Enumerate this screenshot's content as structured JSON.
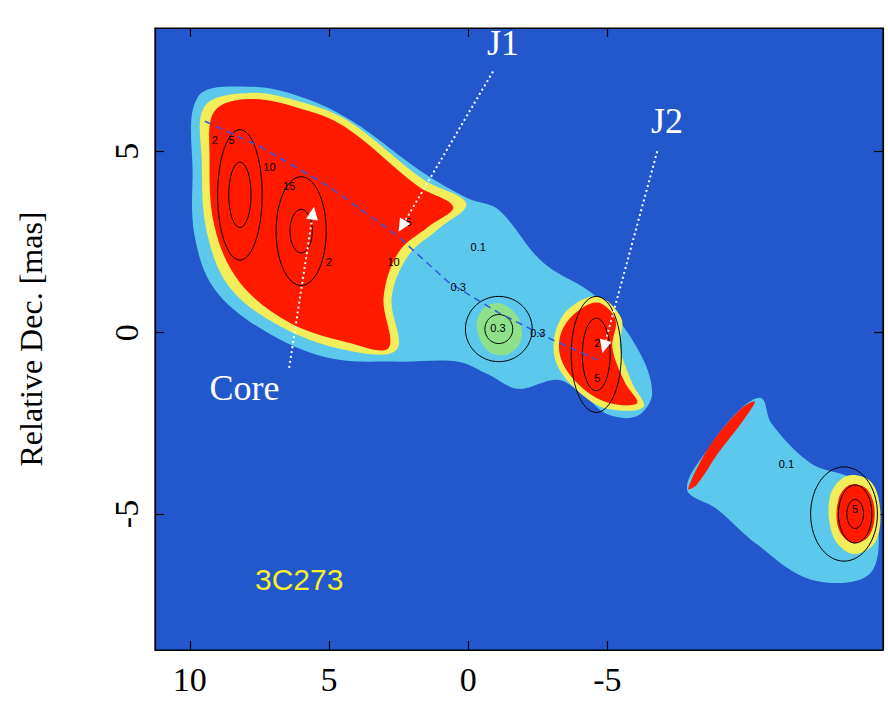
{
  "chart_data": {
    "type": "contour_map",
    "y_label": "Relative Dec. [mas]",
    "xlim": [
      11.25,
      -14.9
    ],
    "xticks": [
      10,
      5,
      0,
      -5
    ],
    "ylim": [
      -8.75,
      8.4
    ],
    "yticks": [
      -5,
      0,
      5
    ],
    "grid": false,
    "regions": [
      {
        "color": "#5cc8ec",
        "points": [
          [
            9.71,
            6.5
          ],
          [
            7.86,
            6.78
          ],
          [
            6.0,
            6.5
          ],
          [
            4.2,
            5.85
          ],
          [
            1.6,
            4.4
          ],
          [
            0,
            3.7
          ],
          [
            -1.07,
            3.4
          ],
          [
            -2.68,
            1.94
          ],
          [
            -4.64,
            0.97
          ],
          [
            -6.07,
            -0.42
          ],
          [
            -6.61,
            -1.67
          ],
          [
            -6.07,
            -2.3
          ],
          [
            -5,
            -2.25
          ],
          [
            -4.11,
            -1.7
          ],
          [
            -3.21,
            -1.3
          ],
          [
            -1.79,
            -1.55
          ],
          [
            -0.71,
            -1.15
          ],
          [
            0.36,
            -0.8
          ],
          [
            2.5,
            -0.8
          ],
          [
            5,
            -0.7
          ],
          [
            7.32,
            0.05
          ],
          [
            9.11,
            1.2
          ],
          [
            9.82,
            2.64
          ],
          [
            9.9,
            4.3
          ]
        ]
      },
      {
        "color": "#f2ee5a",
        "points": [
          [
            9.46,
            6.25
          ],
          [
            7.86,
            6.61
          ],
          [
            6.0,
            6.36
          ],
          [
            4.29,
            5.83
          ],
          [
            1.61,
            4.22
          ],
          [
            0.07,
            3.56
          ],
          [
            1.07,
            2.86
          ],
          [
            2.14,
            2.14
          ],
          [
            2.75,
            0.97
          ],
          [
            2.57,
            -0.47
          ],
          [
            4.46,
            -0.47
          ],
          [
            6.79,
            0.19
          ],
          [
            8.57,
            1.25
          ],
          [
            9.39,
            2.78
          ],
          [
            9.57,
            4.72
          ]
        ]
      },
      {
        "color": "#ff1a00",
        "points": [
          [
            9.11,
            6.11
          ],
          [
            7.86,
            6.44
          ],
          [
            6.07,
            6.19
          ],
          [
            4.46,
            5.69
          ],
          [
            1.79,
            4.03
          ],
          [
            0.54,
            3.47
          ],
          [
            1.43,
            2.92
          ],
          [
            2.5,
            2.22
          ],
          [
            3.04,
            0.97
          ],
          [
            2.86,
            -0.42
          ],
          [
            4.29,
            -0.28
          ],
          [
            6.43,
            0.28
          ],
          [
            8.21,
            1.39
          ],
          [
            9.11,
            2.92
          ],
          [
            9.29,
            4.86
          ]
        ]
      },
      {
        "color": "#f2ee5a",
        "points": [
          [
            -3.6,
            0.65
          ],
          [
            -4.64,
            1.0
          ],
          [
            -5.5,
            0.4
          ],
          [
            -5.45,
            -0.4
          ],
          [
            -5.9,
            -1.4
          ],
          [
            -6.3,
            -2.05
          ],
          [
            -5.0,
            -2.1
          ],
          [
            -4.0,
            -1.65
          ],
          [
            -3.2,
            -0.9
          ],
          [
            -3.1,
            -0.1
          ]
        ]
      },
      {
        "color": "#ff1a00",
        "points": [
          [
            -3.75,
            0.47
          ],
          [
            -4.64,
            0.83
          ],
          [
            -5.29,
            0.36
          ],
          [
            -5.18,
            -0.42
          ],
          [
            -5.64,
            -1.39
          ],
          [
            -6.07,
            -1.94
          ],
          [
            -5.07,
            -1.94
          ],
          [
            -4.11,
            -1.53
          ],
          [
            -3.39,
            -0.83
          ],
          [
            -3.29,
            -0.14
          ]
        ]
      },
      {
        "color": "#8fe08a",
        "points": [
          [
            -0.3,
            0.2
          ],
          [
            -0.6,
            0.7
          ],
          [
            -1.2,
            0.8
          ],
          [
            -1.8,
            0.4
          ],
          [
            -1.9,
            -0.2
          ],
          [
            -1.4,
            -0.6
          ],
          [
            -0.7,
            -0.5
          ]
        ]
      },
      {
        "color": "#5cc8ec",
        "points": [
          [
            -7.86,
            -4.31
          ],
          [
            -8.75,
            -3.06
          ],
          [
            -9.82,
            -2.08
          ],
          [
            -10.54,
            -1.81
          ],
          [
            -10.89,
            -2.5
          ],
          [
            -12.32,
            -3.61
          ],
          [
            -13.93,
            -4.1
          ],
          [
            -14.7,
            -5.2
          ],
          [
            -14.4,
            -6.67
          ],
          [
            -12.32,
            -6.81
          ],
          [
            -10.36,
            -5.83
          ],
          [
            -8.93,
            -4.86
          ]
        ]
      },
      {
        "color": "#ff1a00",
        "points": [
          [
            -7.9,
            -4.3
          ],
          [
            -8.7,
            -3.1
          ],
          [
            -9.8,
            -2.1
          ],
          [
            -10.3,
            -1.9
          ],
          [
            -9.9,
            -2.4
          ],
          [
            -9.0,
            -3.3
          ],
          [
            -8.2,
            -4.2
          ]
        ]
      },
      {
        "color": "#f2ee5a",
        "points": [
          [
            -13.0,
            -4.5
          ],
          [
            -13.6,
            -3.95
          ],
          [
            -14.45,
            -4.1
          ],
          [
            -14.8,
            -4.9
          ],
          [
            -14.6,
            -5.8
          ],
          [
            -13.8,
            -6.1
          ],
          [
            -13.1,
            -5.6
          ]
        ]
      },
      {
        "color": "#ff1a00",
        "points": [
          [
            -13.3,
            -4.6
          ],
          [
            -13.7,
            -4.2
          ],
          [
            -14.3,
            -4.3
          ],
          [
            -14.6,
            -4.9
          ],
          [
            -14.4,
            -5.6
          ],
          [
            -13.8,
            -5.8
          ],
          [
            -13.3,
            -5.4
          ]
        ]
      }
    ],
    "contours": [
      {
        "x": 8.2,
        "y": 3.8,
        "rx": 0.4,
        "ry": 0.9
      },
      {
        "x": 8.2,
        "y": 3.8,
        "rx": 0.8,
        "ry": 1.8
      },
      {
        "x": 6.0,
        "y": 2.8,
        "rx": 0.4,
        "ry": 0.6
      },
      {
        "x": 6.0,
        "y": 2.8,
        "rx": 0.9,
        "ry": 1.5
      },
      {
        "x": -1.1,
        "y": 0.1,
        "rx": 0.5,
        "ry": 0.4
      },
      {
        "x": -1.1,
        "y": 0.1,
        "rx": 1.2,
        "ry": 0.9
      },
      {
        "x": -4.6,
        "y": -0.6,
        "rx": 0.5,
        "ry": 1.0
      },
      {
        "x": -4.6,
        "y": -0.6,
        "rx": 0.9,
        "ry": 1.6
      },
      {
        "x": -13.9,
        "y": -5.0,
        "rx": 0.3,
        "ry": 0.4
      },
      {
        "x": -13.9,
        "y": -5.0,
        "rx": 0.6,
        "ry": 0.8
      },
      {
        "x": -13.5,
        "y": -5.0,
        "rx": 1.2,
        "ry": 1.3
      }
    ],
    "contour_labels": [
      {
        "text": "2",
        "x": 9.1,
        "y": 5.3
      },
      {
        "text": "5",
        "x": 8.5,
        "y": 5.3
      },
      {
        "text": "10",
        "x": 7.14,
        "y": 4.58
      },
      {
        "text": "15",
        "x": 6.43,
        "y": 4.03
      },
      {
        "text": "2",
        "x": 5.0,
        "y": 1.94
      },
      {
        "text": "5",
        "x": 2.14,
        "y": 3.06
      },
      {
        "text": "10",
        "x": 2.68,
        "y": 1.94
      },
      {
        "text": "0.1",
        "x": -0.36,
        "y": 2.36
      },
      {
        "text": "0.3",
        "x": 0.36,
        "y": 1.25
      },
      {
        "text": "0.3",
        "x": -1.07,
        "y": 0.14
      },
      {
        "text": "0.3",
        "x": -2.5,
        "y": 0.0
      },
      {
        "text": "2",
        "x": -4.64,
        "y": -0.28
      },
      {
        "text": "5",
        "x": -4.64,
        "y": -1.25
      },
      {
        "text": "0.1",
        "x": -11.43,
        "y": -3.61
      },
      {
        "text": "5",
        "x": -13.9,
        "y": -4.86
      }
    ],
    "ridge": {
      "line_style": "dashed",
      "color": "#3355dd",
      "points": [
        [
          9.46,
          5.83
        ],
        [
          7.5,
          5.14
        ],
        [
          5.0,
          4.03
        ],
        [
          2.5,
          2.64
        ],
        [
          0.71,
          1.39
        ],
        [
          -1.07,
          0.56
        ],
        [
          -2.86,
          -0.14
        ],
        [
          -4.64,
          -0.75
        ]
      ]
    },
    "annotations": [
      {
        "text": "J1",
        "x": -1.25,
        "y": 8.0,
        "color": "#ffffff",
        "arrow_from": [
          -0.89,
          7.2
        ],
        "arrow_to": [
          2.5,
          2.78
        ]
      },
      {
        "text": "J2",
        "x": -7.14,
        "y": 5.83,
        "color": "#ffffff",
        "arrow_from": [
          -6.79,
          5.0
        ],
        "arrow_to": [
          -4.82,
          -0.56
        ]
      },
      {
        "text": "Core",
        "x": 8.04,
        "y": -1.53,
        "color": "#ffffff",
        "arrow_from": [
          6.43,
          -0.97
        ],
        "arrow_to": [
          5.54,
          3.47
        ]
      },
      {
        "text": "3C273",
        "x": 6.07,
        "y": -6.81,
        "color": "#f5f02a"
      }
    ]
  }
}
